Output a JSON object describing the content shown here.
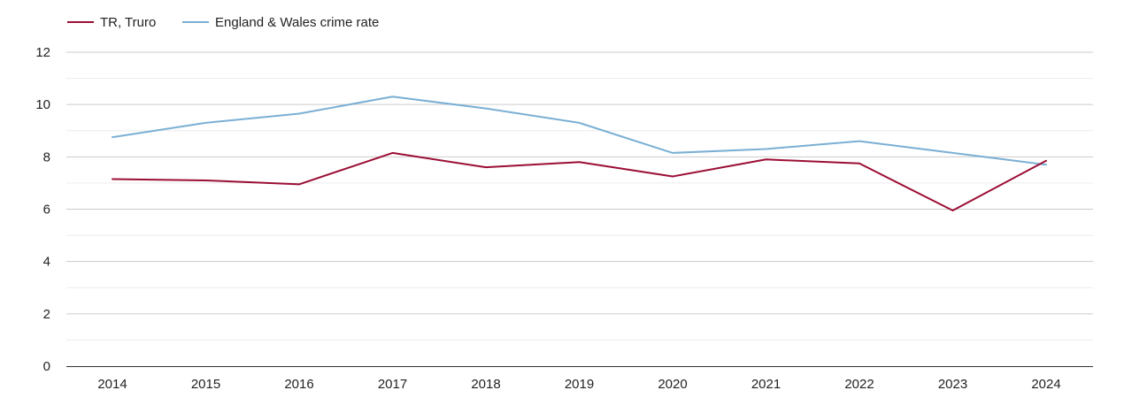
{
  "chart_data": {
    "type": "line",
    "title": "",
    "xlabel": "",
    "ylabel": "",
    "categories": [
      "2014",
      "2015",
      "2016",
      "2017",
      "2018",
      "2019",
      "2020",
      "2021",
      "2022",
      "2023",
      "2024"
    ],
    "ylim": [
      0,
      12
    ],
    "yticks": [
      0,
      2,
      4,
      6,
      8,
      10,
      12
    ],
    "minor_gridlines": [
      1,
      3,
      5,
      7,
      9,
      11
    ],
    "grid": true,
    "legend_position": "top-left",
    "series": [
      {
        "name": "TR, Truro",
        "color": "#9b0e35",
        "values": [
          7.15,
          7.1,
          6.95,
          8.15,
          7.6,
          7.8,
          7.25,
          7.9,
          7.75,
          5.95,
          7.85
        ]
      },
      {
        "name": "England & Wales crime rate",
        "color": "#7aafd4",
        "values": [
          8.75,
          9.3,
          9.65,
          10.3,
          9.85,
          9.3,
          8.15,
          8.3,
          8.6,
          8.15,
          7.7
        ]
      }
    ]
  }
}
